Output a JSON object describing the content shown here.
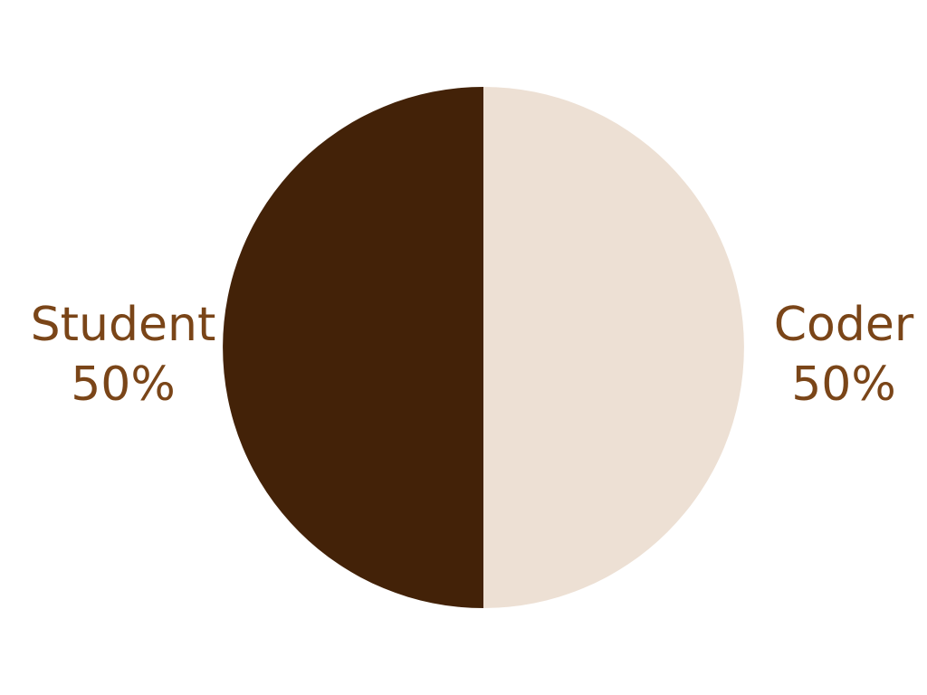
{
  "chart_data": {
    "type": "pie",
    "labels": [
      "Coder",
      "Student"
    ],
    "values": [
      50,
      50
    ],
    "value_labels": [
      "50%",
      "50%"
    ],
    "colors": [
      "#ede0d4",
      "#432208"
    ],
    "label_color": "#7a4518",
    "start_direction": "top",
    "order": "clockwise",
    "labels_position": "outside",
    "title": ""
  }
}
